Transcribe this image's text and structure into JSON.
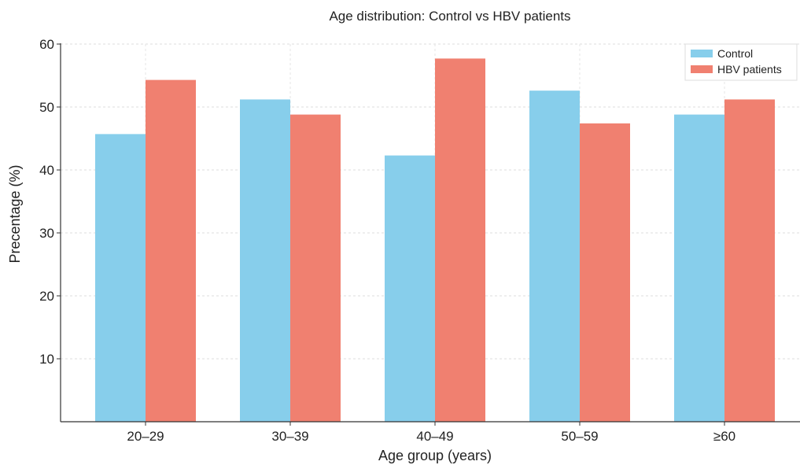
{
  "chart_data": {
    "type": "bar",
    "title": "Age distribution: Control vs HBV patients",
    "xlabel": "Age group (years)",
    "ylabel": "Precentage (%)",
    "categories": [
      "20–29",
      "30–39",
      "40–49",
      "50–59",
      "≥60"
    ],
    "series": [
      {
        "name": "Control",
        "color": "#87CEEB",
        "values": [
          45.7,
          51.2,
          42.3,
          52.6,
          48.8
        ]
      },
      {
        "name": "HBV patients",
        "color": "#F08070",
        "values": [
          54.3,
          48.8,
          57.7,
          47.4,
          51.2
        ]
      }
    ],
    "ylim": [
      0,
      60
    ],
    "yticks": [
      10,
      20,
      30,
      40,
      50,
      60
    ],
    "grid": true,
    "legend_position": "top-right"
  }
}
